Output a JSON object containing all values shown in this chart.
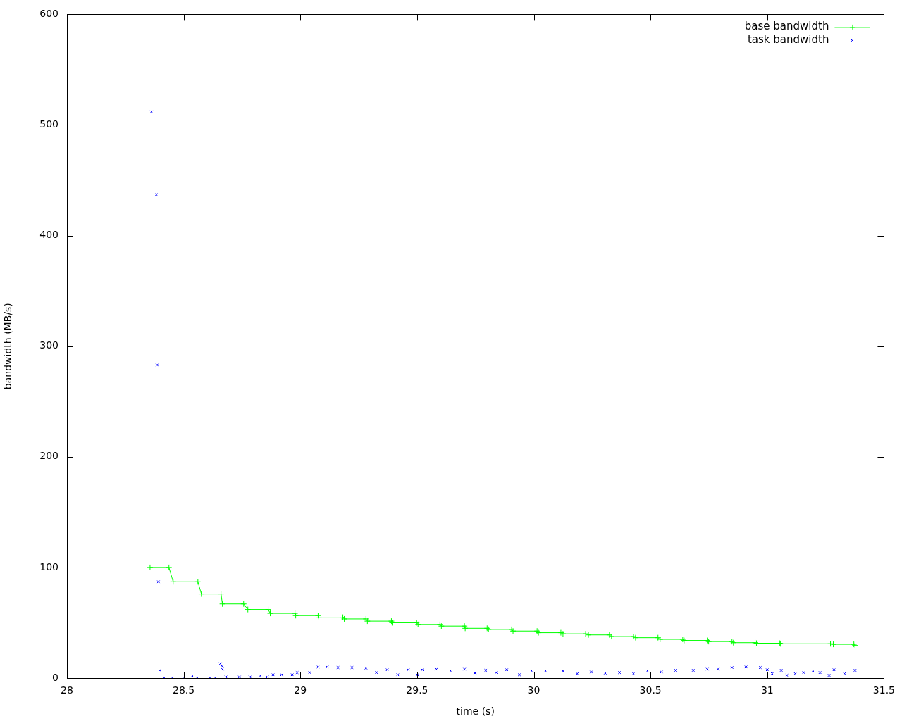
{
  "chart_data": {
    "type": "line",
    "xlabel": "time (s)",
    "ylabel": "bandwidth (MB/s)",
    "xlim": [
      28,
      31.5
    ],
    "xticks": [
      28,
      28.5,
      29,
      29.5,
      30,
      30.5,
      31,
      31.5
    ],
    "ylim": [
      0,
      600
    ],
    "yticks": [
      0,
      100,
      200,
      300,
      400,
      500,
      600
    ],
    "legend": "top right",
    "series": [
      {
        "name": "base bandwidth",
        "type": "line",
        "marker": "cross",
        "color": "#00ff00",
        "x": [
          28.356,
          28.437,
          28.455,
          28.561,
          28.576,
          28.66,
          28.666,
          28.757,
          28.775,
          28.862,
          28.871,
          28.977,
          28.98,
          29.076,
          29.079,
          29.182,
          29.188,
          29.281,
          29.287,
          29.39,
          29.393,
          29.498,
          29.504,
          29.598,
          29.604,
          29.703,
          29.706,
          29.8,
          29.806,
          29.905,
          29.911,
          30.014,
          30.02,
          30.116,
          30.125,
          30.222,
          30.234,
          30.324,
          30.333,
          30.427,
          30.436,
          30.532,
          30.541,
          30.638,
          30.644,
          30.743,
          30.749,
          30.849,
          30.855,
          30.948,
          30.954,
          31.054,
          31.057,
          31.271,
          31.283,
          31.371,
          31.376
        ],
        "values": [
          100,
          100,
          87,
          87,
          76,
          76,
          67,
          67,
          62,
          62,
          58.5,
          58.5,
          56.5,
          56.5,
          55,
          55,
          53.5,
          53.5,
          51.5,
          51.5,
          50,
          50,
          48.5,
          48.5,
          47,
          47,
          45,
          45,
          44,
          44,
          42.5,
          42.5,
          41,
          41,
          40,
          40,
          39,
          39,
          37.5,
          37.5,
          36.5,
          36.5,
          35,
          35,
          34,
          34,
          33,
          33,
          32,
          32,
          31.5,
          31.5,
          31,
          31,
          30.5,
          30.5,
          29.5
        ]
      },
      {
        "name": "task bandwidth",
        "type": "scatter",
        "marker": "cross",
        "color": "#0000ff",
        "x": [
          28.362,
          28.383,
          28.386,
          28.392,
          28.398,
          28.416,
          28.452,
          28.503,
          28.537,
          28.558,
          28.612,
          28.636,
          28.657,
          28.663,
          28.666,
          28.681,
          28.739,
          28.784,
          28.829,
          28.859,
          28.883,
          28.92,
          28.965,
          28.986,
          29.04,
          29.076,
          29.115,
          29.161,
          29.221,
          29.281,
          29.326,
          29.372,
          29.417,
          29.462,
          29.501,
          29.522,
          29.583,
          29.643,
          29.703,
          29.748,
          29.794,
          29.839,
          29.884,
          29.938,
          29.99,
          30.05,
          30.125,
          30.186,
          30.246,
          30.306,
          30.367,
          30.427,
          30.487,
          30.547,
          30.608,
          30.683,
          30.743,
          30.789,
          30.849,
          30.909,
          30.97,
          31,
          31.021,
          31.06,
          31.084,
          31.12,
          31.156,
          31.196,
          31.226,
          31.265,
          31.286,
          31.331,
          31.376
        ],
        "values": [
          512,
          437,
          283,
          87,
          7,
          0,
          0,
          0,
          2,
          0,
          0,
          0,
          13,
          11,
          8,
          1,
          1,
          1,
          2,
          1,
          3,
          3,
          3,
          5,
          5,
          10,
          10,
          9.5,
          9.5,
          9,
          5,
          7.5,
          3,
          7.5,
          3,
          7.5,
          8,
          6.5,
          8,
          4.5,
          7,
          5,
          7.5,
          3,
          6.5,
          6.5,
          6.5,
          4,
          5.5,
          4.5,
          5,
          4,
          6.5,
          5.5,
          7,
          7,
          8,
          8,
          9.5,
          10,
          9.5,
          7.5,
          4,
          7,
          2.5,
          4,
          5,
          6.5,
          5,
          2.5,
          7.5,
          4,
          7
        ]
      }
    ]
  }
}
